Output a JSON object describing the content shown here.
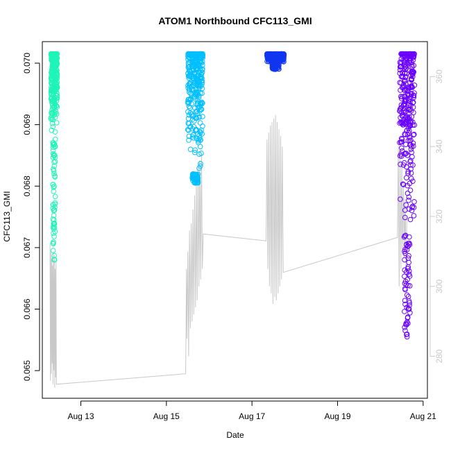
{
  "chart_data": {
    "type": "scatter",
    "title": "ATOM1 Northbound CFC113_GMI",
    "xlabel": "Date",
    "ylabel": "CFC113_GMI",
    "y2label": "",
    "x_ticks": [
      "Aug 13",
      "Aug 15",
      "Aug 17",
      "Aug 19",
      "Aug 21"
    ],
    "x_tick_values": [
      13,
      15,
      17,
      19,
      21
    ],
    "xlim": [
      12.1,
      21.1
    ],
    "y_ticks": [
      "0.065",
      "0.066",
      "0.067",
      "0.068",
      "0.069",
      "0.070"
    ],
    "y_tick_values": [
      0.065,
      0.066,
      0.067,
      0.068,
      0.069,
      0.07
    ],
    "ylim": [
      0.06455,
      0.07035
    ],
    "y2_ticks": [
      "280",
      "300",
      "320",
      "340",
      "360"
    ],
    "y2_tick_values": [
      280,
      300,
      320,
      340,
      360
    ],
    "y2lim": [
      268,
      370
    ],
    "grid": false,
    "legend": "none",
    "series": [
      {
        "color": "#1DF5B7",
        "x": [
          12.3,
          12.45
        ],
        "ymin": 0.0668,
        "ymax": 0.07015,
        "dense_range": [
          0.0688,
          0.07015
        ],
        "sparse_range": [
          0.0668,
          0.0688
        ]
      },
      {
        "color": "#00BFFF",
        "x": [
          15.5,
          15.85
        ],
        "ymin": 0.06805,
        "ymax": 0.07015,
        "dense_range": [
          0.0682,
          0.07015
        ],
        "sparse_range": [
          0.06805,
          0.0682
        ]
      },
      {
        "color": "#1136F0",
        "x": [
          17.35,
          17.75
        ],
        "ymin": 0.0699,
        "ymax": 0.07015,
        "dense_range": [
          0.07,
          0.07015
        ],
        "sparse_range": [
          0.0699,
          0.07
        ]
      },
      {
        "color": "#6A00FF",
        "x": [
          20.45,
          20.8
        ],
        "ymin": 0.06555,
        "ymax": 0.07015,
        "dense_range": [
          0.0672,
          0.07015
        ],
        "sparse_range": [
          0.06555,
          0.0672
        ]
      }
    ],
    "secondary_line": {
      "color": "#c8c8c8",
      "points": [
        [
          12.28,
          312
        ],
        [
          12.29,
          273
        ],
        [
          12.3,
          310
        ],
        [
          12.31,
          275
        ],
        [
          12.32,
          308
        ],
        [
          12.33,
          278
        ],
        [
          12.34,
          306
        ],
        [
          12.35,
          272
        ],
        [
          12.36,
          310
        ],
        [
          12.37,
          276
        ],
        [
          12.38,
          309
        ],
        [
          12.39,
          271
        ],
        [
          12.4,
          305
        ],
        [
          12.41,
          274
        ],
        [
          12.42,
          307
        ],
        [
          12.43,
          272
        ],
        [
          15.45,
          275
        ],
        [
          15.47,
          305
        ],
        [
          15.48,
          285
        ],
        [
          15.5,
          310
        ],
        [
          15.52,
          280
        ],
        [
          15.54,
          316
        ],
        [
          15.56,
          288
        ],
        [
          15.58,
          318
        ],
        [
          15.6,
          290
        ],
        [
          15.62,
          322
        ],
        [
          15.64,
          292
        ],
        [
          15.66,
          326
        ],
        [
          15.68,
          294
        ],
        [
          15.7,
          330
        ],
        [
          15.72,
          296
        ],
        [
          15.74,
          334
        ],
        [
          15.76,
          300
        ],
        [
          15.78,
          336
        ],
        [
          15.8,
          302
        ],
        [
          15.82,
          338
        ],
        [
          15.84,
          305
        ],
        [
          15.86,
          315
        ],
        [
          17.33,
          313
        ],
        [
          17.35,
          342
        ],
        [
          17.37,
          305
        ],
        [
          17.39,
          344
        ],
        [
          17.41,
          300
        ],
        [
          17.43,
          346
        ],
        [
          17.45,
          298
        ],
        [
          17.47,
          347
        ],
        [
          17.49,
          295
        ],
        [
          17.51,
          348
        ],
        [
          17.53,
          297
        ],
        [
          17.55,
          349
        ],
        [
          17.57,
          296
        ],
        [
          17.59,
          347
        ],
        [
          17.61,
          298
        ],
        [
          17.63,
          345
        ],
        [
          17.65,
          300
        ],
        [
          17.67,
          343
        ],
        [
          17.69,
          302
        ],
        [
          17.71,
          340
        ],
        [
          17.73,
          304
        ],
        [
          20.4,
          314
        ],
        [
          20.42,
          340
        ],
        [
          20.44,
          300
        ],
        [
          20.46,
          338
        ],
        [
          20.48,
          305
        ],
        [
          20.5,
          336
        ],
        [
          20.52,
          310
        ],
        [
          20.54,
          330
        ],
        [
          20.56,
          308
        ],
        [
          20.58,
          325
        ],
        [
          20.6,
          304
        ],
        [
          20.62,
          320
        ]
      ]
    }
  }
}
